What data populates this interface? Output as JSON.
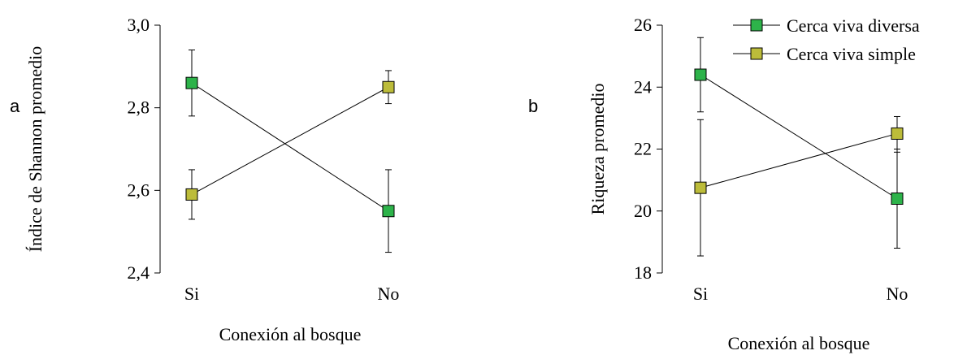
{
  "colors": {
    "diversa": "#2db34a",
    "simple": "#bcbc3a",
    "line": "#000000"
  },
  "chart_data": [
    {
      "type": "line",
      "panel_label": "a",
      "xlabel": "Conexión al bosque",
      "ylabel": "Índice de Shannon promedio",
      "categories": [
        "Si",
        "No"
      ],
      "ylim": [
        2.4,
        3.0
      ],
      "yticks": [
        2.4,
        2.6,
        2.8,
        3.0
      ],
      "ytick_labels": [
        "2,4",
        "2,6",
        "2,8",
        "3,0"
      ],
      "grid": false,
      "series": [
        {
          "name": "Cerca viva diversa",
          "values": [
            2.86,
            2.55
          ],
          "err_low": [
            2.78,
            2.45
          ],
          "err_high": [
            2.94,
            2.65
          ]
        },
        {
          "name": "Cerca viva simple",
          "values": [
            2.59,
            2.85
          ],
          "err_low": [
            2.53,
            2.81
          ],
          "err_high": [
            2.65,
            2.89
          ]
        }
      ]
    },
    {
      "type": "line",
      "panel_label": "b",
      "xlabel": "Conexión al bosque",
      "ylabel": "Riqueza promedio",
      "categories": [
        "Si",
        "No"
      ],
      "ylim": [
        18,
        26
      ],
      "yticks": [
        18,
        20,
        22,
        24,
        26
      ],
      "ytick_labels": [
        "18",
        "20",
        "22",
        "24",
        "26"
      ],
      "grid": false,
      "legend_position": "top-right",
      "series": [
        {
          "name": "Cerca viva diversa",
          "values": [
            24.4,
            20.4
          ],
          "err_low": [
            23.2,
            18.8
          ],
          "err_high": [
            25.6,
            22.0
          ]
        },
        {
          "name": "Cerca viva simple",
          "values": [
            20.75,
            22.5
          ],
          "err_low": [
            18.55,
            21.9
          ],
          "err_high": [
            22.95,
            23.05
          ]
        }
      ]
    }
  ]
}
